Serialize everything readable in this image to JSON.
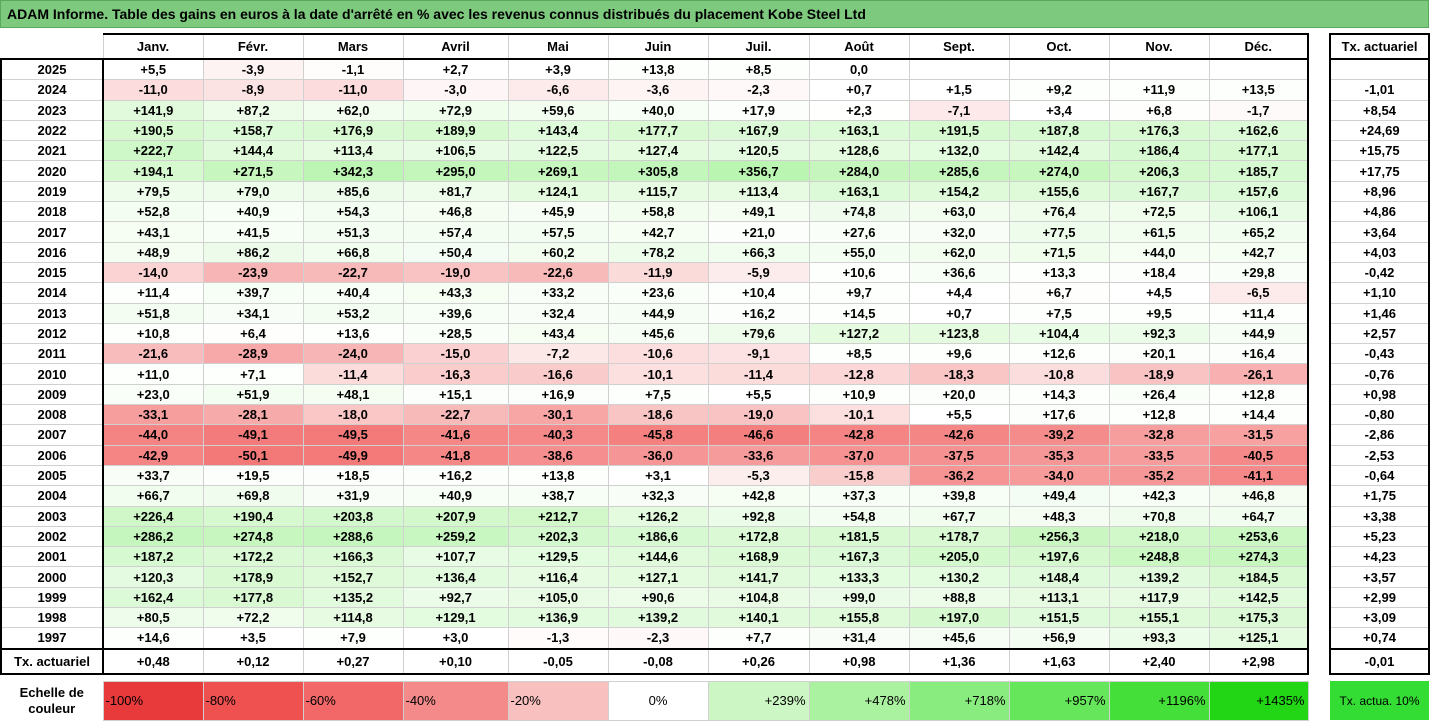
{
  "title": "ADAM Informe. Table des gains en euros à la date d'arrêté en % avec les revenus connus distribués du placement Kobe Steel Ltd",
  "header": {
    "months": [
      "Janv.",
      "Févr.",
      "Mars",
      "Avril",
      "Mai",
      "Juin",
      "Juil.",
      "Août",
      "Sept.",
      "Oct.",
      "Nov.",
      "Déc."
    ],
    "tx": "Tx. actuariel"
  },
  "rows": [
    {
      "year": 2025,
      "cells": [
        "+5,5",
        "-3,9",
        "-1,1",
        "+2,7",
        "+3,9",
        "+13,8",
        "+8,5",
        "0,0",
        null,
        null,
        null,
        null
      ],
      "tx": null
    },
    {
      "year": 2024,
      "cells": [
        "-11,0",
        "-8,9",
        "-11,0",
        "-3,0",
        "-6,6",
        "-3,6",
        "-2,3",
        "+0,7",
        "+1,5",
        "+9,2",
        "+11,9",
        "+13,5"
      ],
      "tx": "-1,01"
    },
    {
      "year": 2023,
      "cells": [
        "+141,9",
        "+87,2",
        "+62,0",
        "+72,9",
        "+59,6",
        "+40,0",
        "+17,9",
        "+2,3",
        "-7,1",
        "+3,4",
        "+6,8",
        "-1,7"
      ],
      "tx": "+8,54"
    },
    {
      "year": 2022,
      "cells": [
        "+190,5",
        "+158,7",
        "+176,9",
        "+189,9",
        "+143,4",
        "+177,7",
        "+167,9",
        "+163,1",
        "+191,5",
        "+187,8",
        "+176,3",
        "+162,6"
      ],
      "tx": "+24,69"
    },
    {
      "year": 2021,
      "cells": [
        "+222,7",
        "+144,4",
        "+113,4",
        "+106,5",
        "+122,5",
        "+127,4",
        "+120,5",
        "+128,6",
        "+132,0",
        "+142,4",
        "+186,4",
        "+177,1"
      ],
      "tx": "+15,75"
    },
    {
      "year": 2020,
      "cells": [
        "+194,1",
        "+271,5",
        "+342,3",
        "+295,0",
        "+269,1",
        "+305,8",
        "+356,7",
        "+284,0",
        "+285,6",
        "+274,0",
        "+206,3",
        "+185,7"
      ],
      "tx": "+17,75"
    },
    {
      "year": 2019,
      "cells": [
        "+79,5",
        "+79,0",
        "+85,6",
        "+81,7",
        "+124,1",
        "+115,7",
        "+113,4",
        "+163,1",
        "+154,2",
        "+155,6",
        "+167,7",
        "+157,6"
      ],
      "tx": "+8,96"
    },
    {
      "year": 2018,
      "cells": [
        "+52,8",
        "+40,9",
        "+54,3",
        "+46,8",
        "+45,9",
        "+58,8",
        "+49,1",
        "+74,8",
        "+63,0",
        "+76,4",
        "+72,5",
        "+106,1"
      ],
      "tx": "+4,86"
    },
    {
      "year": 2017,
      "cells": [
        "+43,1",
        "+41,5",
        "+51,3",
        "+57,4",
        "+57,5",
        "+42,7",
        "+21,0",
        "+27,6",
        "+32,0",
        "+77,5",
        "+61,5",
        "+65,2"
      ],
      "tx": "+3,64"
    },
    {
      "year": 2016,
      "cells": [
        "+48,9",
        "+86,2",
        "+66,8",
        "+50,4",
        "+60,2",
        "+78,2",
        "+66,3",
        "+55,0",
        "+62,0",
        "+71,5",
        "+44,0",
        "+42,7"
      ],
      "tx": "+4,03"
    },
    {
      "year": 2015,
      "cells": [
        "-14,0",
        "-23,9",
        "-22,7",
        "-19,0",
        "-22,6",
        "-11,9",
        "-5,9",
        "+10,6",
        "+36,6",
        "+13,3",
        "+18,4",
        "+29,8"
      ],
      "tx": "-0,42"
    },
    {
      "year": 2014,
      "cells": [
        "+11,4",
        "+39,7",
        "+40,4",
        "+43,3",
        "+33,2",
        "+23,6",
        "+10,4",
        "+9,7",
        "+4,4",
        "+6,7",
        "+4,5",
        "-6,5"
      ],
      "tx": "+1,10"
    },
    {
      "year": 2013,
      "cells": [
        "+51,8",
        "+34,1",
        "+53,2",
        "+39,6",
        "+32,4",
        "+44,9",
        "+16,2",
        "+14,5",
        "+0,7",
        "+7,5",
        "+9,5",
        "+11,4"
      ],
      "tx": "+1,46"
    },
    {
      "year": 2012,
      "cells": [
        "+10,8",
        "+6,4",
        "+13,6",
        "+28,5",
        "+43,4",
        "+45,6",
        "+79,6",
        "+127,2",
        "+123,8",
        "+104,4",
        "+92,3",
        "+44,9"
      ],
      "tx": "+2,57"
    },
    {
      "year": 2011,
      "cells": [
        "-21,6",
        "-28,9",
        "-24,0",
        "-15,0",
        "-7,2",
        "-10,6",
        "-9,1",
        "+8,5",
        "+9,6",
        "+12,6",
        "+20,1",
        "+16,4"
      ],
      "tx": "-0,43"
    },
    {
      "year": 2010,
      "cells": [
        "+11,0",
        "+7,1",
        "-11,4",
        "-16,3",
        "-16,6",
        "-10,1",
        "-11,4",
        "-12,8",
        "-18,3",
        "-10,8",
        "-18,9",
        "-26,1"
      ],
      "tx": "-0,76"
    },
    {
      "year": 2009,
      "cells": [
        "+23,0",
        "+51,9",
        "+48,1",
        "+15,1",
        "+16,9",
        "+7,5",
        "+5,5",
        "+10,9",
        "+20,0",
        "+14,3",
        "+26,4",
        "+12,8"
      ],
      "tx": "+0,98"
    },
    {
      "year": 2008,
      "cells": [
        "-33,1",
        "-28,1",
        "-18,0",
        "-22,7",
        "-30,1",
        "-18,6",
        "-19,0",
        "-10,1",
        "+5,5",
        "+17,6",
        "+12,8",
        "+14,4"
      ],
      "tx": "-0,80"
    },
    {
      "year": 2007,
      "cells": [
        "-44,0",
        "-49,1",
        "-49,5",
        "-41,6",
        "-40,3",
        "-45,8",
        "-46,6",
        "-42,8",
        "-42,6",
        "-39,2",
        "-32,8",
        "-31,5"
      ],
      "tx": "-2,86"
    },
    {
      "year": 2006,
      "cells": [
        "-42,9",
        "-50,1",
        "-49,9",
        "-41,8",
        "-38,6",
        "-36,0",
        "-33,6",
        "-37,0",
        "-37,5",
        "-35,3",
        "-33,5",
        "-40,5"
      ],
      "tx": "-2,53"
    },
    {
      "year": 2005,
      "cells": [
        "+33,7",
        "+19,5",
        "+18,5",
        "+16,2",
        "+13,8",
        "+3,1",
        "-5,3",
        "-15,8",
        "-36,2",
        "-34,0",
        "-35,2",
        "-41,1"
      ],
      "tx": "-0,64"
    },
    {
      "year": 2004,
      "cells": [
        "+66,7",
        "+69,8",
        "+31,9",
        "+40,9",
        "+38,7",
        "+32,3",
        "+42,8",
        "+37,3",
        "+39,8",
        "+49,4",
        "+42,3",
        "+46,8"
      ],
      "tx": "+1,75"
    },
    {
      "year": 2003,
      "cells": [
        "+226,4",
        "+190,4",
        "+203,8",
        "+207,9",
        "+212,7",
        "+126,2",
        "+92,8",
        "+54,8",
        "+67,7",
        "+48,3",
        "+70,8",
        "+64,7"
      ],
      "tx": "+3,38"
    },
    {
      "year": 2002,
      "cells": [
        "+286,2",
        "+274,8",
        "+288,6",
        "+259,2",
        "+202,3",
        "+186,6",
        "+172,8",
        "+181,5",
        "+178,7",
        "+256,3",
        "+218,0",
        "+253,6"
      ],
      "tx": "+5,23"
    },
    {
      "year": 2001,
      "cells": [
        "+187,2",
        "+172,2",
        "+166,3",
        "+107,7",
        "+129,5",
        "+144,6",
        "+168,9",
        "+167,3",
        "+205,0",
        "+197,6",
        "+248,8",
        "+274,3"
      ],
      "tx": "+4,23"
    },
    {
      "year": 2000,
      "cells": [
        "+120,3",
        "+178,9",
        "+152,7",
        "+136,4",
        "+116,4",
        "+127,1",
        "+141,7",
        "+133,3",
        "+130,2",
        "+148,4",
        "+139,2",
        "+184,5"
      ],
      "tx": "+3,57"
    },
    {
      "year": 1999,
      "cells": [
        "+162,4",
        "+177,8",
        "+135,2",
        "+92,7",
        "+105,0",
        "+90,6",
        "+104,8",
        "+99,0",
        "+88,8",
        "+113,1",
        "+117,9",
        "+142,5"
      ],
      "tx": "+2,99"
    },
    {
      "year": 1998,
      "cells": [
        "+80,5",
        "+72,2",
        "+114,8",
        "+129,1",
        "+136,9",
        "+139,2",
        "+140,1",
        "+155,8",
        "+197,0",
        "+151,5",
        "+155,1",
        "+175,3"
      ],
      "tx": "+3,09"
    },
    {
      "year": 1997,
      "cells": [
        "+14,6",
        "+3,5",
        "+7,9",
        "+3,0",
        "-1,3",
        "-2,3",
        "+7,7",
        "+31,4",
        "+45,6",
        "+56,9",
        "+93,3",
        "+125,1"
      ],
      "tx": "+0,74"
    }
  ],
  "total": {
    "label": "Tx. actuariel",
    "cells": [
      "+0,48",
      "+0,12",
      "+0,27",
      "+0,10",
      "-0,05",
      "-0,08",
      "+0,26",
      "+0,98",
      "+1,36",
      "+1,63",
      "+2,40",
      "+2,98"
    ],
    "tx": "-0,01"
  },
  "scale": {
    "label": "Echelle de couleur",
    "stops": [
      {
        "label": "-100%",
        "color": "#e83a3a"
      },
      {
        "label": "-80%",
        "color": "#ef5050"
      },
      {
        "label": "-60%",
        "color": "#f26868"
      },
      {
        "label": "-40%",
        "color": "#f58a8a"
      },
      {
        "label": "-20%",
        "color": "#f9c0c0"
      },
      {
        "label": "0%",
        "color": "#ffffff"
      },
      {
        "label": "+239%",
        "color": "#ccf7c4"
      },
      {
        "label": "+478%",
        "color": "#aaf2a0"
      },
      {
        "label": "+718%",
        "color": "#88ec7e"
      },
      {
        "label": "+957%",
        "color": "#66e65a"
      },
      {
        "label": "+1196%",
        "color": "#44df38"
      },
      {
        "label": "+1435%",
        "color": "#22d616"
      }
    ],
    "tx": {
      "label": "Tx. actua. 10%",
      "color": "#33dd33"
    }
  }
}
